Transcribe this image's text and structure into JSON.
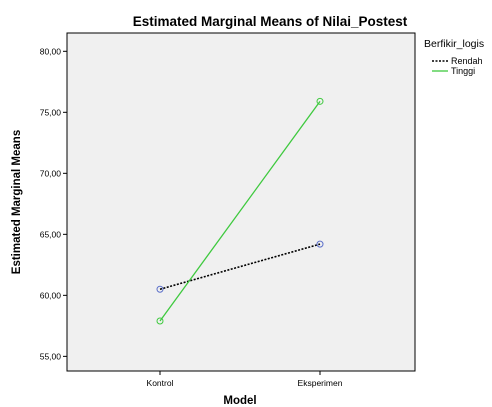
{
  "chart_data": {
    "type": "line",
    "title": "Estimated Marginal Means of Nilai_Postest",
    "xlabel": "Model",
    "ylabel": "Estimated Marginal Means",
    "categories": [
      "Kontrol",
      "Eksperimen"
    ],
    "ylim": [
      53.8,
      81.5
    ],
    "yticks": [
      "55,00",
      "60,00",
      "65,00",
      "70,00",
      "75,00",
      "80,00"
    ],
    "yticks_values": [
      55,
      60,
      65,
      70,
      75,
      80
    ],
    "grid": false,
    "legend": {
      "title": "Berfikir_logis",
      "placement": "right",
      "entries": [
        "Rendah",
        "Tinggi"
      ]
    },
    "series": [
      {
        "name": "Rendah",
        "values": [
          60.5,
          64.2
        ],
        "color": "#000000",
        "dash": "dotted",
        "marker_color": "#5b6fc9"
      },
      {
        "name": "Tinggi",
        "values": [
          57.9,
          75.9
        ],
        "color": "#3ec93e",
        "dash": "solid",
        "marker_color": "#3ec93e"
      }
    ],
    "plot_background": "#f0f0f0"
  }
}
